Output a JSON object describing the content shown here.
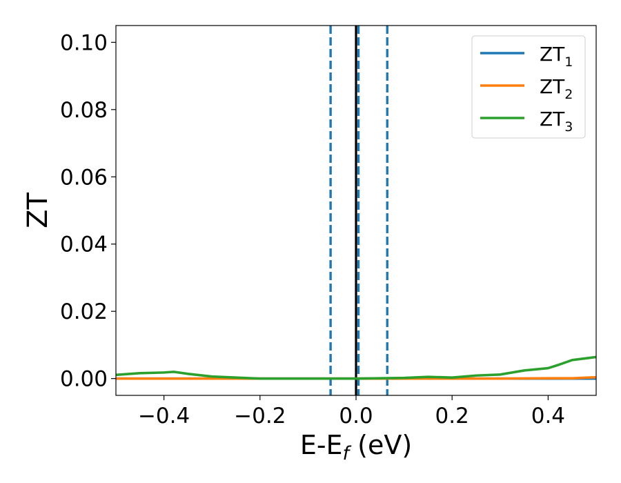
{
  "chart_data": {
    "type": "line",
    "title": "",
    "xlabel": "E-E",
    "xlabel_subscript": "f",
    "xlabel_suffix": " (eV)",
    "ylabel": "ZT",
    "xlim": [
      -0.5,
      0.5
    ],
    "ylim": [
      -0.005,
      0.105
    ],
    "x_ticks": [
      -0.4,
      -0.2,
      0.0,
      0.2,
      0.4
    ],
    "x_tick_labels": [
      "−0.4",
      "−0.2",
      "0.0",
      "0.2",
      "0.4"
    ],
    "y_ticks": [
      0.0,
      0.02,
      0.04,
      0.06,
      0.08,
      0.1
    ],
    "y_tick_labels": [
      "0.00",
      "0.02",
      "0.04",
      "0.06",
      "0.08",
      "0.10"
    ],
    "grid": false,
    "legend_position": "top-right",
    "series": [
      {
        "name": "ZT",
        "subscript": "1",
        "color": "#1f77b4",
        "x": [
          -0.5,
          -0.4,
          -0.3,
          -0.2,
          -0.1,
          0.0,
          0.1,
          0.2,
          0.3,
          0.4,
          0.5
        ],
        "y": [
          0,
          0,
          0,
          0,
          0,
          0,
          0,
          0,
          0,
          0,
          0
        ]
      },
      {
        "name": "ZT",
        "subscript": "2",
        "color": "#ff7f0e",
        "x": [
          -0.5,
          -0.4,
          -0.3,
          -0.2,
          -0.1,
          0.0,
          0.1,
          0.2,
          0.3,
          0.4,
          0.45,
          0.5
        ],
        "y": [
          0.0,
          0.0,
          0.0,
          0.0,
          0.0,
          0.0,
          0.0,
          0.0,
          0.0,
          0.0001,
          0.0001,
          0.0004
        ]
      },
      {
        "name": "ZT",
        "subscript": "3",
        "color": "#2ca02c",
        "x": [
          -0.5,
          -0.45,
          -0.4,
          -0.38,
          -0.35,
          -0.3,
          -0.25,
          -0.2,
          -0.1,
          0.0,
          0.05,
          0.1,
          0.15,
          0.2,
          0.25,
          0.3,
          0.35,
          0.4,
          0.42,
          0.45,
          0.5
        ],
        "y": [
          0.0011,
          0.0016,
          0.0018,
          0.002,
          0.0014,
          0.0006,
          0.0003,
          0.0,
          0.0,
          0.0,
          0.0001,
          0.0002,
          0.0005,
          0.0003,
          0.0009,
          0.0012,
          0.0024,
          0.0031,
          0.004,
          0.0055,
          0.0064
        ]
      }
    ],
    "vertical_lines": [
      {
        "x": -0.053,
        "style": "dashed",
        "color": "#1f77b4"
      },
      {
        "x": 0.0,
        "style": "solid",
        "color": "#000000"
      },
      {
        "x": 0.005,
        "style": "dashed",
        "color": "#1f77b4"
      },
      {
        "x": 0.065,
        "style": "dashed",
        "color": "#1f77b4"
      }
    ]
  }
}
